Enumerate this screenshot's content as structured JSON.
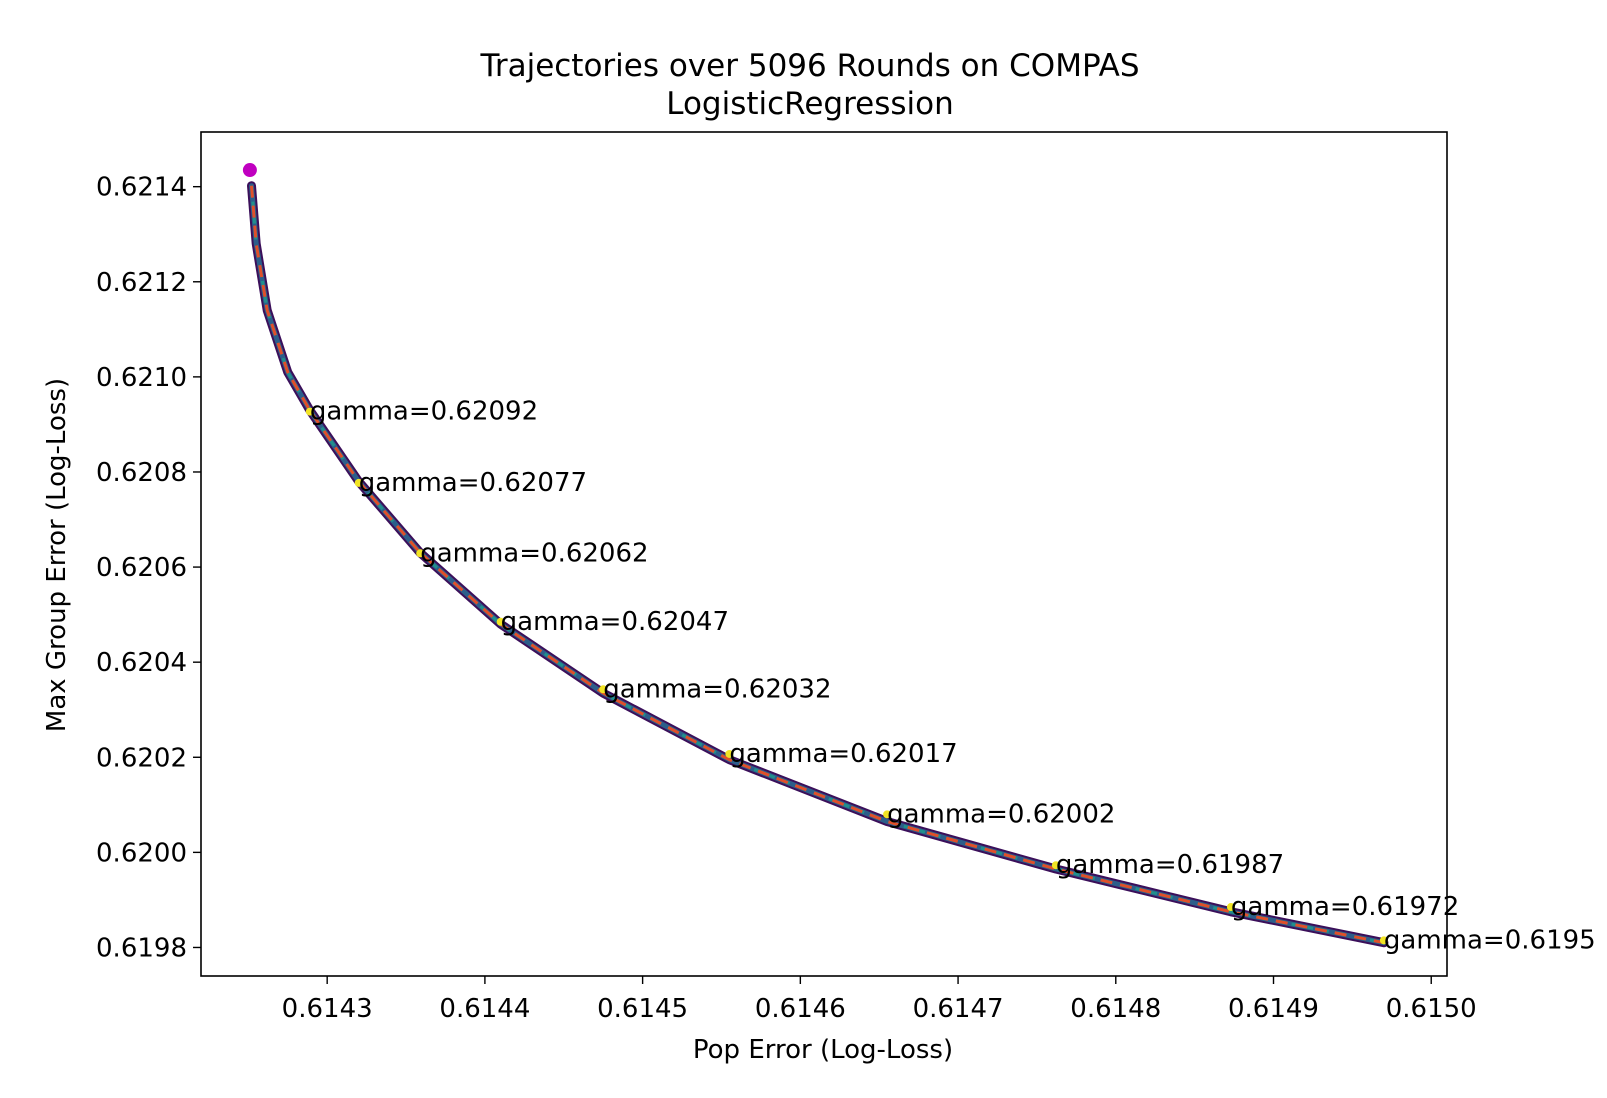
{
  "chart_data": {
    "type": "line",
    "title": "Trajectories over 5096 Rounds on COMPAS",
    "subtitle": "LogisticRegression",
    "xlabel": "Pop Error (Log-Loss)",
    "ylabel": "Max Group Error (Log-Loss)",
    "xlim": [
      0.61422,
      0.61501
    ],
    "ylim": [
      0.61974,
      0.621515
    ],
    "xticks": [
      "0.6143",
      "0.6144",
      "0.6145",
      "0.6146",
      "0.6147",
      "0.6148",
      "0.6149",
      "0.6150"
    ],
    "xtick_values": [
      0.6143,
      0.6144,
      0.6145,
      0.6146,
      0.6147,
      0.6148,
      0.6149,
      0.615
    ],
    "yticks": [
      "0.6198",
      "0.6200",
      "0.6202",
      "0.6204",
      "0.6206",
      "0.6208",
      "0.6210",
      "0.6212",
      "0.6214"
    ],
    "ytick_values": [
      0.6198,
      0.62,
      0.6202,
      0.6204,
      0.6206,
      0.6208,
      0.621,
      0.6212,
      0.6214
    ],
    "grid": false,
    "start_point": {
      "x": 0.614251,
      "y": 0.621435,
      "color": "#c000c0"
    },
    "trajectory_curve": {
      "x": [
        0.614252,
        0.614255,
        0.614262,
        0.614275,
        0.614289,
        0.61432,
        0.614359,
        0.61441,
        0.614475,
        0.614555,
        0.614655,
        0.614762,
        0.614873,
        0.61497
      ],
      "y": [
        0.621402,
        0.62128,
        0.62114,
        0.62101,
        0.62093,
        0.62078,
        0.62063,
        0.62048,
        0.620335,
        0.620195,
        0.620065,
        0.619965,
        0.619875,
        0.61981
      ]
    },
    "gamma_points": [
      {
        "label": "gamma=0.62092",
        "x": 0.614289,
        "y": 0.620927
      },
      {
        "label": "gamma=0.62077",
        "x": 0.61432,
        "y": 0.620777
      },
      {
        "label": "gamma=0.62062",
        "x": 0.614359,
        "y": 0.620629
      },
      {
        "label": "gamma=0.62047",
        "x": 0.61441,
        "y": 0.620485
      },
      {
        "label": "gamma=0.62032",
        "x": 0.614475,
        "y": 0.620343
      },
      {
        "label": "gamma=0.62017",
        "x": 0.614555,
        "y": 0.620207
      },
      {
        "label": "gamma=0.62002",
        "x": 0.614655,
        "y": 0.62008
      },
      {
        "label": "gamma=0.61987",
        "x": 0.614762,
        "y": 0.619973
      },
      {
        "label": "gamma=0.61972",
        "x": 0.614873,
        "y": 0.619885
      },
      {
        "label": "gamma=0.6195",
        "x": 0.61497,
        "y": 0.619815
      }
    ],
    "colors": {
      "trajectory_dark": "#3b0f5a",
      "trajectory_mid": "#2c5e8a",
      "trajectory_teal": "#21908c",
      "pareto_dashed": "#e0502a",
      "highlight_yellow": "#f2e424",
      "start_marker": "#c000c0"
    }
  }
}
